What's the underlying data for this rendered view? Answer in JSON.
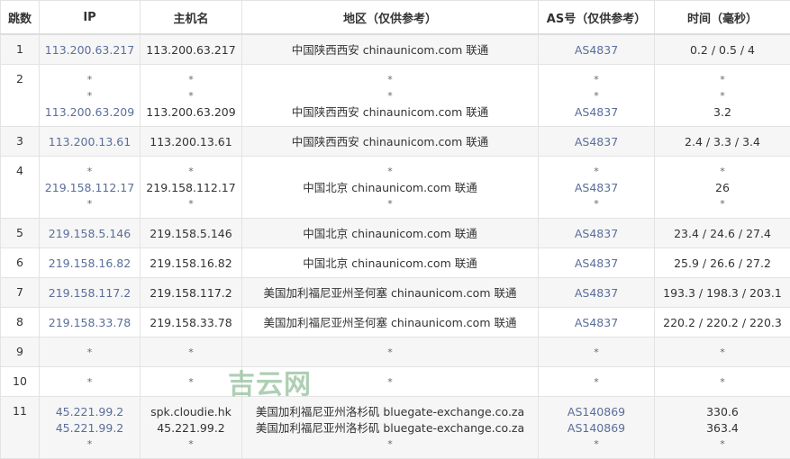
{
  "headers": [
    "跳数",
    "IP",
    "主机名",
    "地区（仅供参考）",
    "AS号（仅供参考）",
    "时间（毫秒）"
  ],
  "link_color": "#5a6e9a",
  "watermark": "吉云网",
  "rows": [
    {
      "hop": "1",
      "ip": [
        "113.200.63.217"
      ],
      "host": [
        "113.200.63.217"
      ],
      "region": [
        "中国陕西西安 chinaunicom.com 联通"
      ],
      "as": [
        "AS4837"
      ],
      "time": [
        "0.2 / 0.5 / 4"
      ]
    },
    {
      "hop": "2",
      "ip": [
        "*",
        "*",
        "113.200.63.209"
      ],
      "host": [
        "*",
        "*",
        "113.200.63.209"
      ],
      "region": [
        "*",
        "*",
        "中国陕西西安 chinaunicom.com 联通"
      ],
      "as": [
        "*",
        "*",
        "AS4837"
      ],
      "time": [
        "*",
        "*",
        "3.2"
      ]
    },
    {
      "hop": "3",
      "ip": [
        "113.200.13.61"
      ],
      "host": [
        "113.200.13.61"
      ],
      "region": [
        "中国陕西西安 chinaunicom.com 联通"
      ],
      "as": [
        "AS4837"
      ],
      "time": [
        "2.4 / 3.3 / 3.4"
      ]
    },
    {
      "hop": "4",
      "ip": [
        "*",
        "219.158.112.17",
        "*"
      ],
      "host": [
        "*",
        "219.158.112.17",
        "*"
      ],
      "region": [
        "*",
        "中国北京 chinaunicom.com 联通",
        "*"
      ],
      "as": [
        "*",
        "AS4837",
        "*"
      ],
      "time": [
        "*",
        "26",
        "*"
      ]
    },
    {
      "hop": "5",
      "ip": [
        "219.158.5.146"
      ],
      "host": [
        "219.158.5.146"
      ],
      "region": [
        "中国北京 chinaunicom.com 联通"
      ],
      "as": [
        "AS4837"
      ],
      "time": [
        "23.4 / 24.6 / 27.4"
      ]
    },
    {
      "hop": "6",
      "ip": [
        "219.158.16.82"
      ],
      "host": [
        "219.158.16.82"
      ],
      "region": [
        "中国北京 chinaunicom.com 联通"
      ],
      "as": [
        "AS4837"
      ],
      "time": [
        "25.9 / 26.6 / 27.2"
      ]
    },
    {
      "hop": "7",
      "ip": [
        "219.158.117.2"
      ],
      "host": [
        "219.158.117.2"
      ],
      "region": [
        "美国加利福尼亚州圣何塞 chinaunicom.com 联通"
      ],
      "as": [
        "AS4837"
      ],
      "time": [
        "193.3 / 198.3 / 203.1"
      ]
    },
    {
      "hop": "8",
      "ip": [
        "219.158.33.78"
      ],
      "host": [
        "219.158.33.78"
      ],
      "region": [
        "美国加利福尼亚州圣何塞 chinaunicom.com 联通"
      ],
      "as": [
        "AS4837"
      ],
      "time": [
        "220.2 / 220.2 / 220.3"
      ]
    },
    {
      "hop": "9",
      "ip": [
        "*"
      ],
      "host": [
        "*"
      ],
      "region": [
        "*"
      ],
      "as": [
        "*"
      ],
      "time": [
        "*"
      ]
    },
    {
      "hop": "10",
      "ip": [
        "*"
      ],
      "host": [
        "*"
      ],
      "region": [
        "*"
      ],
      "as": [
        "*"
      ],
      "time": [
        "*"
      ]
    },
    {
      "hop": "11",
      "ip": [
        "45.221.99.2",
        "45.221.99.2",
        "*"
      ],
      "host": [
        "spk.cloudie.hk",
        "45.221.99.2",
        "*"
      ],
      "region": [
        "美国加利福尼亚州洛杉矶 bluegate-exchange.co.za",
        "美国加利福尼亚州洛杉矶 bluegate-exchange.co.za",
        "*"
      ],
      "as": [
        "AS140869",
        "AS140869",
        "*"
      ],
      "time": [
        "330.6",
        "363.4",
        "*"
      ]
    }
  ]
}
